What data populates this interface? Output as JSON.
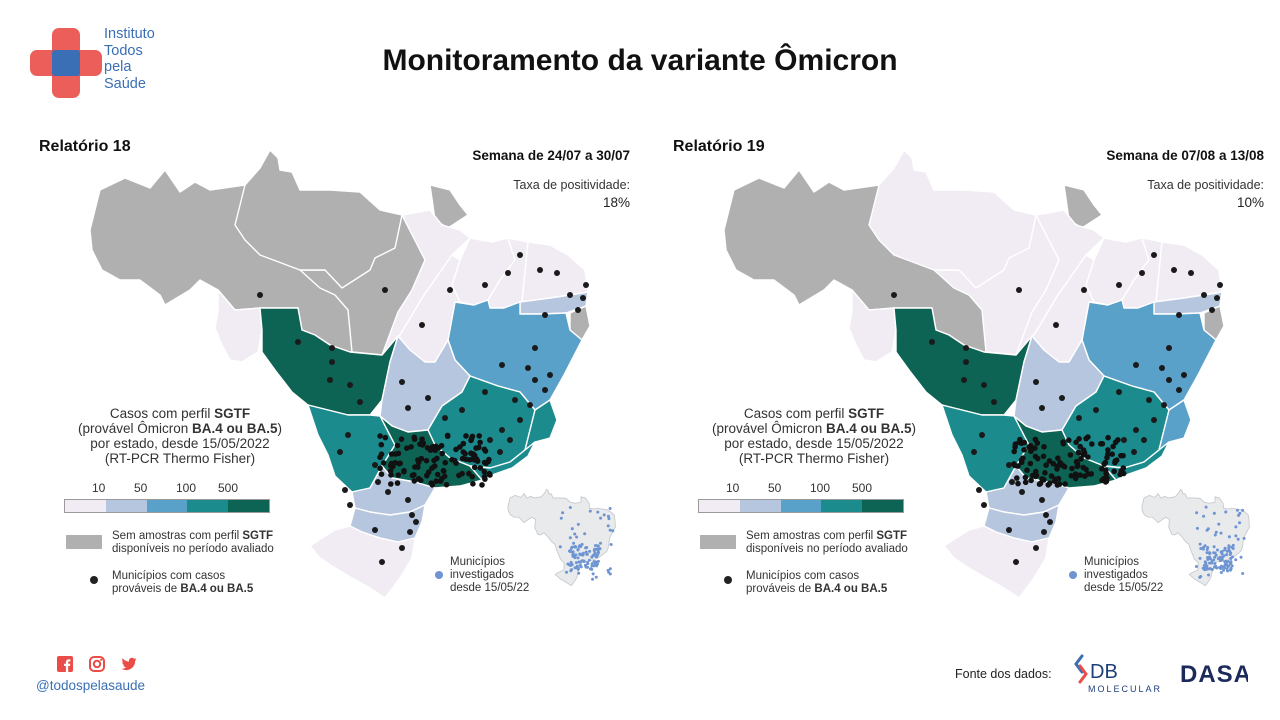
{
  "header": {
    "logo_lines": [
      "Instituto",
      "Todos",
      "pela",
      "Saúde"
    ],
    "title": "Monitoramento da variante Ômicron"
  },
  "colors": {
    "class_lt10": "#f1ecf4",
    "class_10_50": "#b7c6df",
    "class_50_100": "#5aa1c9",
    "class_100_500": "#1c8b8e",
    "class_gt500": "#0e6454",
    "no_samples": "#b0b0b0",
    "logo_red": "#ea4d47",
    "logo_blue": "#3a6fb5"
  },
  "panels": [
    {
      "label": "Relatório 18",
      "week": "Semana de 24/07 a 30/07",
      "positivity_label": "Taxa de positividade:",
      "positivity_value": "18%",
      "legend": {
        "title_lines": [
          "Casos com perfil SGTF",
          "(provável Ômicron BA.4 ou BA.5)",
          "por estado, desde 15/05/2022",
          "(RT-PCR Thermo Fisher)"
        ],
        "ticks": [
          "10",
          "50",
          "100",
          "500"
        ],
        "no_samples_lines": [
          "Sem amostras com perfil SGTF",
          "disponíveis no período avaliado"
        ],
        "dots_lines": [
          "Municípios com casos",
          "prováveis de BA.4 ou BA.5"
        ],
        "inset_lines": [
          "Municípios",
          "investigados",
          "desde 15/05/22"
        ]
      },
      "state_classes": {
        "north_west": "no_samples",
        "north_central": "no_samples",
        "roraima": "no_samples",
        "amapa": "no_samples",
        "tocantins": "class_lt10",
        "para_east": "class_lt10",
        "maranhao": "class_lt10",
        "piaui": "class_lt10",
        "northeast_north": "class_lt10",
        "pernambuco": "class_10_50",
        "sergipe_alagoas": "no_samples",
        "bahia": "class_50_100",
        "rondonia": "class_lt10",
        "mato_grosso": "class_gt500",
        "goias": "class_10_50",
        "minas_gerais": "class_100_500",
        "mato_grosso_sul": "class_100_500",
        "sao_paulo": "class_gt500",
        "rio_de_janeiro": "class_100_500",
        "espirito_santo": "class_100_500",
        "parana": "class_10_50",
        "santa_catarina": "class_10_50",
        "rio_grande_sul": "class_lt10"
      }
    },
    {
      "label": "Relatório 19",
      "week": "Semana de 07/08 a 13/08",
      "positivity_label": "Taxa de positividade:",
      "positivity_value": "10%",
      "legend": {
        "title_lines": [
          "Casos com perfil SGTF",
          "(provável Ômicron BA.4 ou BA.5)",
          "por estado, desde 15/05/2022",
          "(RT-PCR Thermo Fisher)"
        ],
        "ticks": [
          "10",
          "50",
          "100",
          "500"
        ],
        "no_samples_lines": [
          "Sem amostras com perfil SGTF",
          "disponíveis no período avaliado"
        ],
        "dots_lines": [
          "Municípios com casos",
          "prováveis de BA.4 ou BA.5"
        ],
        "inset_lines": [
          "Municípios",
          "investigados",
          "desde 15/05/22"
        ]
      },
      "state_classes": {
        "north_west": "no_samples",
        "north_central": "class_lt10",
        "roraima": "class_lt10",
        "amapa": "no_samples",
        "tocantins": "class_lt10",
        "para_east": "class_lt10",
        "maranhao": "class_lt10",
        "piaui": "class_lt10",
        "northeast_north": "class_lt10",
        "pernambuco": "class_10_50",
        "sergipe_alagoas": "no_samples",
        "bahia": "class_50_100",
        "rondonia": "class_lt10",
        "mato_grosso": "class_gt500",
        "goias": "class_10_50",
        "minas_gerais": "class_100_500",
        "mato_grosso_sul": "class_100_500",
        "sao_paulo": "class_gt500",
        "rio_de_janeiro": "class_100_500",
        "espirito_santo": "class_50_100",
        "parana": "class_10_50",
        "santa_catarina": "class_10_50",
        "rio_grande_sul": "class_lt10"
      }
    }
  ],
  "footer": {
    "social_icons": [
      "facebook-icon",
      "instagram-icon",
      "twitter-icon"
    ],
    "handle": "@todospelasaude",
    "source_label": "Fonte dos dados:",
    "db_logo_letters": "DB",
    "db_logo_word": "MOLECULAR",
    "dasa_logo_word": "DASA"
  }
}
